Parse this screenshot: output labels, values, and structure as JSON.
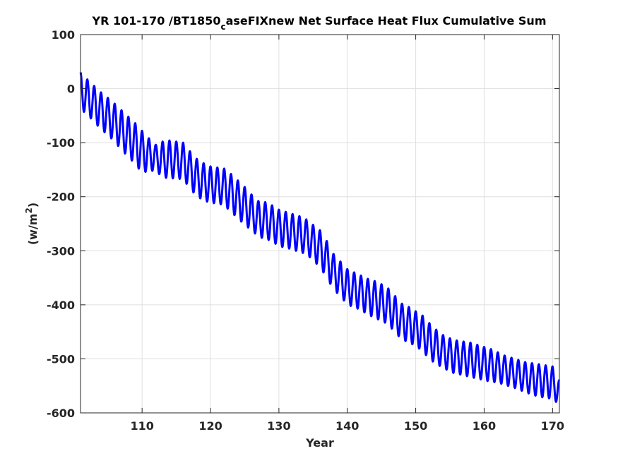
{
  "chart_data": {
    "type": "line",
    "title_main": "YR 101-170 /BT1850",
    "title_sub": "c",
    "title_rest": "aseFIXnew Net Surface Heat Flux  Cumulative Sum",
    "xlabel": "Year",
    "ylabel_base": "(w/m",
    "ylabel_sup": "2",
    "ylabel_close": ")",
    "xlim": [
      101,
      171
    ],
    "ylim": [
      -600,
      100
    ],
    "xticks": [
      110,
      120,
      130,
      140,
      150,
      160,
      170
    ],
    "yticks": [
      100,
      0,
      -100,
      -200,
      -300,
      -400,
      -500,
      -600
    ],
    "grid": true,
    "color": "#0000ff",
    "series": [
      {
        "x": [
          101,
          102,
          103,
          104,
          105,
          106,
          107,
          108,
          109,
          110,
          111,
          112,
          113,
          114,
          115,
          116,
          117,
          118,
          119,
          120,
          121,
          122,
          123,
          124,
          125,
          126,
          127,
          128,
          129,
          130,
          131,
          132,
          133,
          134,
          135,
          136,
          137,
          138,
          139,
          140,
          141,
          142,
          143,
          144,
          145,
          146,
          147,
          148,
          149,
          150,
          151,
          152,
          153,
          154,
          155,
          156,
          157,
          158,
          159,
          160,
          161,
          162,
          163,
          164,
          165,
          166,
          167,
          168,
          169,
          170,
          171
        ],
        "seasonal_max": [
          30,
          17,
          5,
          -7,
          -17,
          -28,
          -40,
          -52,
          -64,
          -78,
          -92,
          -104,
          -98,
          -96,
          -98,
          -100,
          -116,
          -130,
          -138,
          -144,
          -146,
          -148,
          -158,
          -170,
          -182,
          -196,
          -208,
          -210,
          -216,
          -224,
          -228,
          -232,
          -236,
          -242,
          -252,
          -262,
          -282,
          -306,
          -320,
          -334,
          -340,
          -346,
          -352,
          -356,
          -362,
          -370,
          -384,
          -398,
          -404,
          -412,
          -420,
          -434,
          -446,
          -456,
          -462,
          -466,
          -468,
          -470,
          -474,
          -478,
          -482,
          -488,
          -494,
          -498,
          -502,
          -506,
          -508,
          -510,
          -512,
          -514,
          -540
        ],
        "seasonal_min": [
          -38,
          -48,
          -62,
          -75,
          -86,
          -98,
          -114,
          -126,
          -140,
          -156,
          -152,
          -152,
          -164,
          -166,
          -166,
          -168,
          -184,
          -200,
          -206,
          -212,
          -212,
          -216,
          -228,
          -240,
          -252,
          -262,
          -274,
          -278,
          -282,
          -292,
          -294,
          -298,
          -302,
          -306,
          -318,
          -330,
          -350,
          -372,
          -384,
          -400,
          -404,
          -410,
          -418,
          -424,
          -430,
          -436,
          -452,
          -464,
          -470,
          -476,
          -486,
          -500,
          -510,
          -516,
          -524,
          -528,
          -530,
          -534,
          -536,
          -540,
          -542,
          -544,
          -548,
          -552,
          -556,
          -562,
          -566,
          -570,
          -572,
          -574,
          -585
        ]
      }
    ]
  }
}
